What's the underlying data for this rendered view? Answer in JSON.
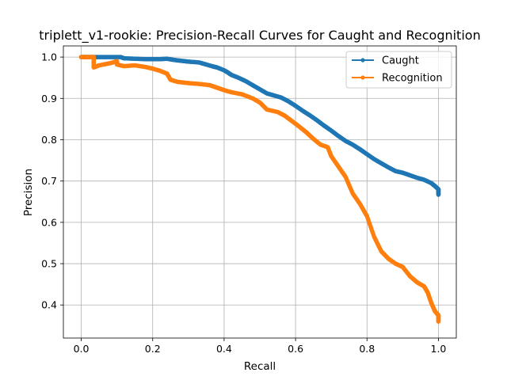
{
  "chart_data": {
    "type": "line",
    "title": "triplett_v1-rookie: Precision-Recall Curves for Caught and Recognition",
    "xlabel": "Recall",
    "ylabel": "Precision",
    "xlim": [
      -0.05,
      1.05
    ],
    "ylim": [
      0.32,
      1.027
    ],
    "xticks": [
      0.0,
      0.2,
      0.4,
      0.6,
      0.8,
      1.0
    ],
    "xtick_labels": [
      "0.0",
      "0.2",
      "0.4",
      "0.6",
      "0.8",
      "1.0"
    ],
    "yticks": [
      0.4,
      0.5,
      0.6,
      0.7,
      0.8,
      0.9,
      1.0
    ],
    "ytick_labels": [
      "0.4",
      "0.5",
      "0.6",
      "0.7",
      "0.8",
      "0.9",
      "1.0"
    ],
    "grid": true,
    "legend_position": "top-right",
    "series": [
      {
        "name": "Caught",
        "color": "#1f77b4",
        "x": [
          0.0,
          0.02,
          0.05,
          0.08,
          0.11,
          0.12,
          0.15,
          0.18,
          0.2,
          0.22,
          0.24,
          0.26,
          0.28,
          0.3,
          0.33,
          0.35,
          0.37,
          0.38,
          0.4,
          0.41,
          0.42,
          0.44,
          0.46,
          0.48,
          0.5,
          0.52,
          0.54,
          0.56,
          0.58,
          0.6,
          0.62,
          0.64,
          0.66,
          0.68,
          0.7,
          0.72,
          0.74,
          0.76,
          0.78,
          0.8,
          0.82,
          0.84,
          0.86,
          0.88,
          0.9,
          0.92,
          0.94,
          0.96,
          0.98,
          0.99,
          1.0,
          1.0
        ],
        "y": [
          1.0,
          1.0,
          1.0,
          1.0,
          1.0,
          0.997,
          0.996,
          0.995,
          0.995,
          0.995,
          0.996,
          0.993,
          0.991,
          0.989,
          0.987,
          0.982,
          0.977,
          0.975,
          0.968,
          0.963,
          0.957,
          0.95,
          0.942,
          0.932,
          0.922,
          0.912,
          0.907,
          0.902,
          0.893,
          0.882,
          0.87,
          0.859,
          0.847,
          0.834,
          0.822,
          0.809,
          0.797,
          0.788,
          0.777,
          0.765,
          0.753,
          0.743,
          0.733,
          0.724,
          0.72,
          0.714,
          0.708,
          0.703,
          0.695,
          0.688,
          0.68,
          0.667
        ]
      },
      {
        "name": "Recognition",
        "color": "#ff7f0e",
        "x": [
          0.0,
          0.02,
          0.035,
          0.035,
          0.05,
          0.08,
          0.1,
          0.1,
          0.12,
          0.15,
          0.18,
          0.2,
          0.22,
          0.24,
          0.25,
          0.27,
          0.3,
          0.33,
          0.36,
          0.38,
          0.4,
          0.42,
          0.45,
          0.48,
          0.5,
          0.52,
          0.55,
          0.57,
          0.59,
          0.61,
          0.63,
          0.65,
          0.67,
          0.69,
          0.7,
          0.72,
          0.74,
          0.76,
          0.78,
          0.8,
          0.82,
          0.84,
          0.86,
          0.88,
          0.9,
          0.92,
          0.94,
          0.96,
          0.97,
          0.98,
          0.99,
          1.0,
          1.0
        ],
        "y": [
          1.0,
          1.0,
          1.0,
          0.975,
          0.98,
          0.985,
          0.99,
          0.982,
          0.978,
          0.98,
          0.976,
          0.972,
          0.967,
          0.96,
          0.945,
          0.94,
          0.937,
          0.935,
          0.932,
          0.926,
          0.92,
          0.915,
          0.91,
          0.9,
          0.89,
          0.873,
          0.867,
          0.858,
          0.845,
          0.832,
          0.818,
          0.802,
          0.788,
          0.782,
          0.76,
          0.735,
          0.71,
          0.67,
          0.645,
          0.615,
          0.565,
          0.53,
          0.512,
          0.5,
          0.492,
          0.47,
          0.455,
          0.445,
          0.43,
          0.405,
          0.385,
          0.375,
          0.36
        ]
      }
    ]
  }
}
